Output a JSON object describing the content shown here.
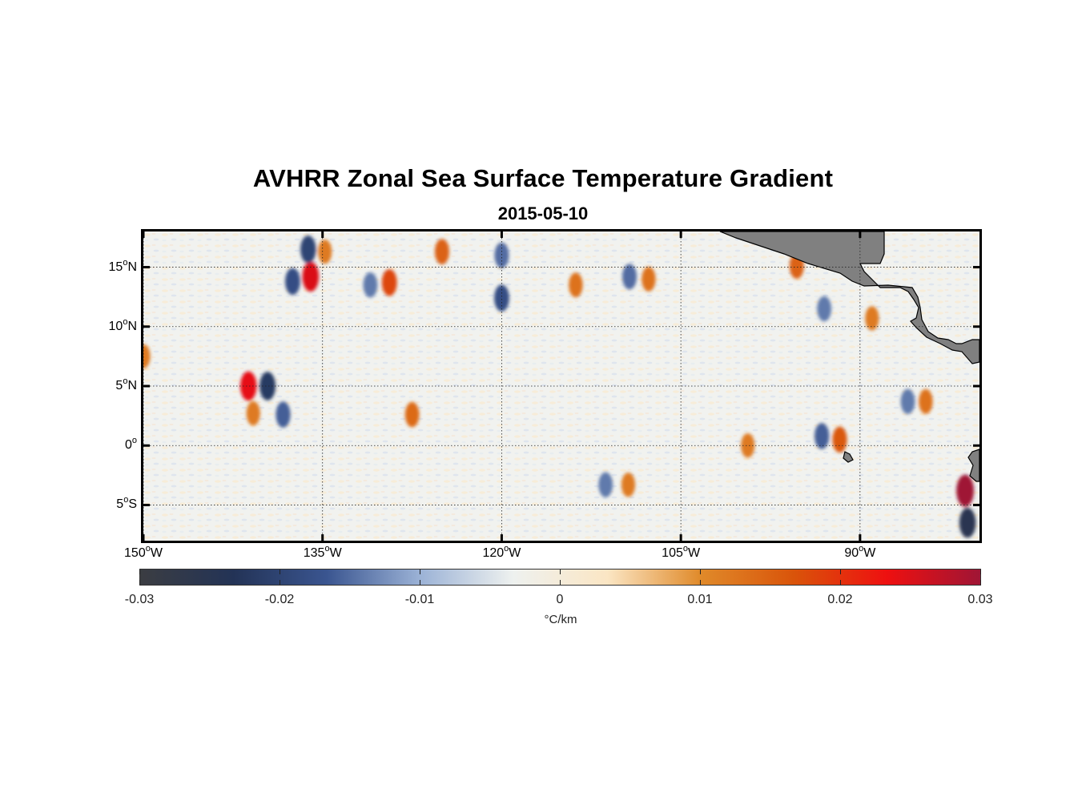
{
  "figure": {
    "title": "AVHRR Zonal Sea Surface Temperature Gradient",
    "subtitle": "2015-05-10"
  },
  "map": {
    "lon_range": [
      -150,
      -80
    ],
    "lat_range": [
      -8,
      18
    ],
    "lat_ticks": [
      {
        "value": 15,
        "num": "15",
        "hemi": "N"
      },
      {
        "value": 10,
        "num": "10",
        "hemi": "N"
      },
      {
        "value": 5,
        "num": "5",
        "hemi": "N"
      },
      {
        "value": 0,
        "num": "0",
        "hemi": ""
      },
      {
        "value": -5,
        "num": "5",
        "hemi": "S"
      }
    ],
    "lon_ticks": [
      {
        "value": -150,
        "num": "150",
        "hemi": "W"
      },
      {
        "value": -135,
        "num": "135",
        "hemi": "W"
      },
      {
        "value": -120,
        "num": "120",
        "hemi": "W"
      },
      {
        "value": -105,
        "num": "105",
        "hemi": "W"
      },
      {
        "value": -90,
        "num": "90",
        "hemi": "W"
      }
    ],
    "degree_symbol": "o",
    "grid": true,
    "land_color": "#808080",
    "ocean_background": "#f1f2ef"
  },
  "colorbar": {
    "min": -0.03,
    "max": 0.03,
    "ticks": [
      {
        "value": -0.03,
        "label": "-0.03"
      },
      {
        "value": -0.02,
        "label": "-0.02"
      },
      {
        "value": -0.01,
        "label": "-0.01"
      },
      {
        "value": 0,
        "label": "0"
      },
      {
        "value": 0.01,
        "label": "0.01"
      },
      {
        "value": 0.02,
        "label": "0.02"
      },
      {
        "value": 0.03,
        "label": "0.03"
      }
    ],
    "unit": "°C/km",
    "colors": [
      "#3b3d42",
      "#233356",
      "#3a5590",
      "#9bb2d6",
      "#eef1ef",
      "#fbe6c4",
      "#e08a2a",
      "#d9540a",
      "#ee1010",
      "#9f1535"
    ]
  },
  "chart_data": {
    "type": "heatmap",
    "title": "AVHRR Zonal Sea Surface Temperature Gradient",
    "subtitle": "2015-05-10",
    "x_range": [
      -150,
      -80
    ],
    "y_range": [
      -8,
      18
    ],
    "value_range": [
      -0.03,
      0.03
    ],
    "unit": "°C/km",
    "features": [
      {
        "lon": -136.0,
        "lat": 14.2,
        "value": 0.025
      },
      {
        "lon": -137.5,
        "lat": 13.8,
        "value": -0.018
      },
      {
        "lon": -136.2,
        "lat": 16.5,
        "value": -0.02
      },
      {
        "lon": -134.8,
        "lat": 16.3,
        "value": 0.012
      },
      {
        "lon": -141.2,
        "lat": 5.0,
        "value": 0.024
      },
      {
        "lon": -139.6,
        "lat": 5.0,
        "value": -0.022
      },
      {
        "lon": -140.8,
        "lat": 2.7,
        "value": 0.012
      },
      {
        "lon": -138.3,
        "lat": 2.6,
        "value": -0.016
      },
      {
        "lon": -129.4,
        "lat": 13.7,
        "value": 0.018
      },
      {
        "lon": -131.0,
        "lat": 13.5,
        "value": -0.014
      },
      {
        "lon": -125.0,
        "lat": 16.3,
        "value": 0.015
      },
      {
        "lon": -120.0,
        "lat": 12.4,
        "value": -0.018
      },
      {
        "lon": -120.0,
        "lat": 16.0,
        "value": -0.015
      },
      {
        "lon": -127.5,
        "lat": 2.6,
        "value": 0.014
      },
      {
        "lon": -113.8,
        "lat": 13.5,
        "value": 0.013
      },
      {
        "lon": -109.3,
        "lat": 14.2,
        "value": -0.015
      },
      {
        "lon": -107.7,
        "lat": 14.0,
        "value": 0.013
      },
      {
        "lon": -111.3,
        "lat": -3.3,
        "value": -0.014
      },
      {
        "lon": -109.4,
        "lat": -3.3,
        "value": 0.012
      },
      {
        "lon": -99.4,
        "lat": 0.0,
        "value": 0.012
      },
      {
        "lon": -91.7,
        "lat": 0.5,
        "value": 0.016
      },
      {
        "lon": -93.2,
        "lat": 0.8,
        "value": -0.016
      },
      {
        "lon": -95.3,
        "lat": 15.1,
        "value": 0.015
      },
      {
        "lon": -89.0,
        "lat": 10.7,
        "value": 0.012
      },
      {
        "lon": -93.0,
        "lat": 11.5,
        "value": -0.014
      },
      {
        "lon": -150.0,
        "lat": 7.5,
        "value": 0.012
      },
      {
        "lon": -81.2,
        "lat": -3.8,
        "value": 0.03
      },
      {
        "lon": -81.0,
        "lat": -6.5,
        "value": -0.025
      },
      {
        "lon": -84.5,
        "lat": 3.7,
        "value": 0.013
      },
      {
        "lon": -86.0,
        "lat": 3.7,
        "value": -0.014
      }
    ],
    "grid": true
  }
}
